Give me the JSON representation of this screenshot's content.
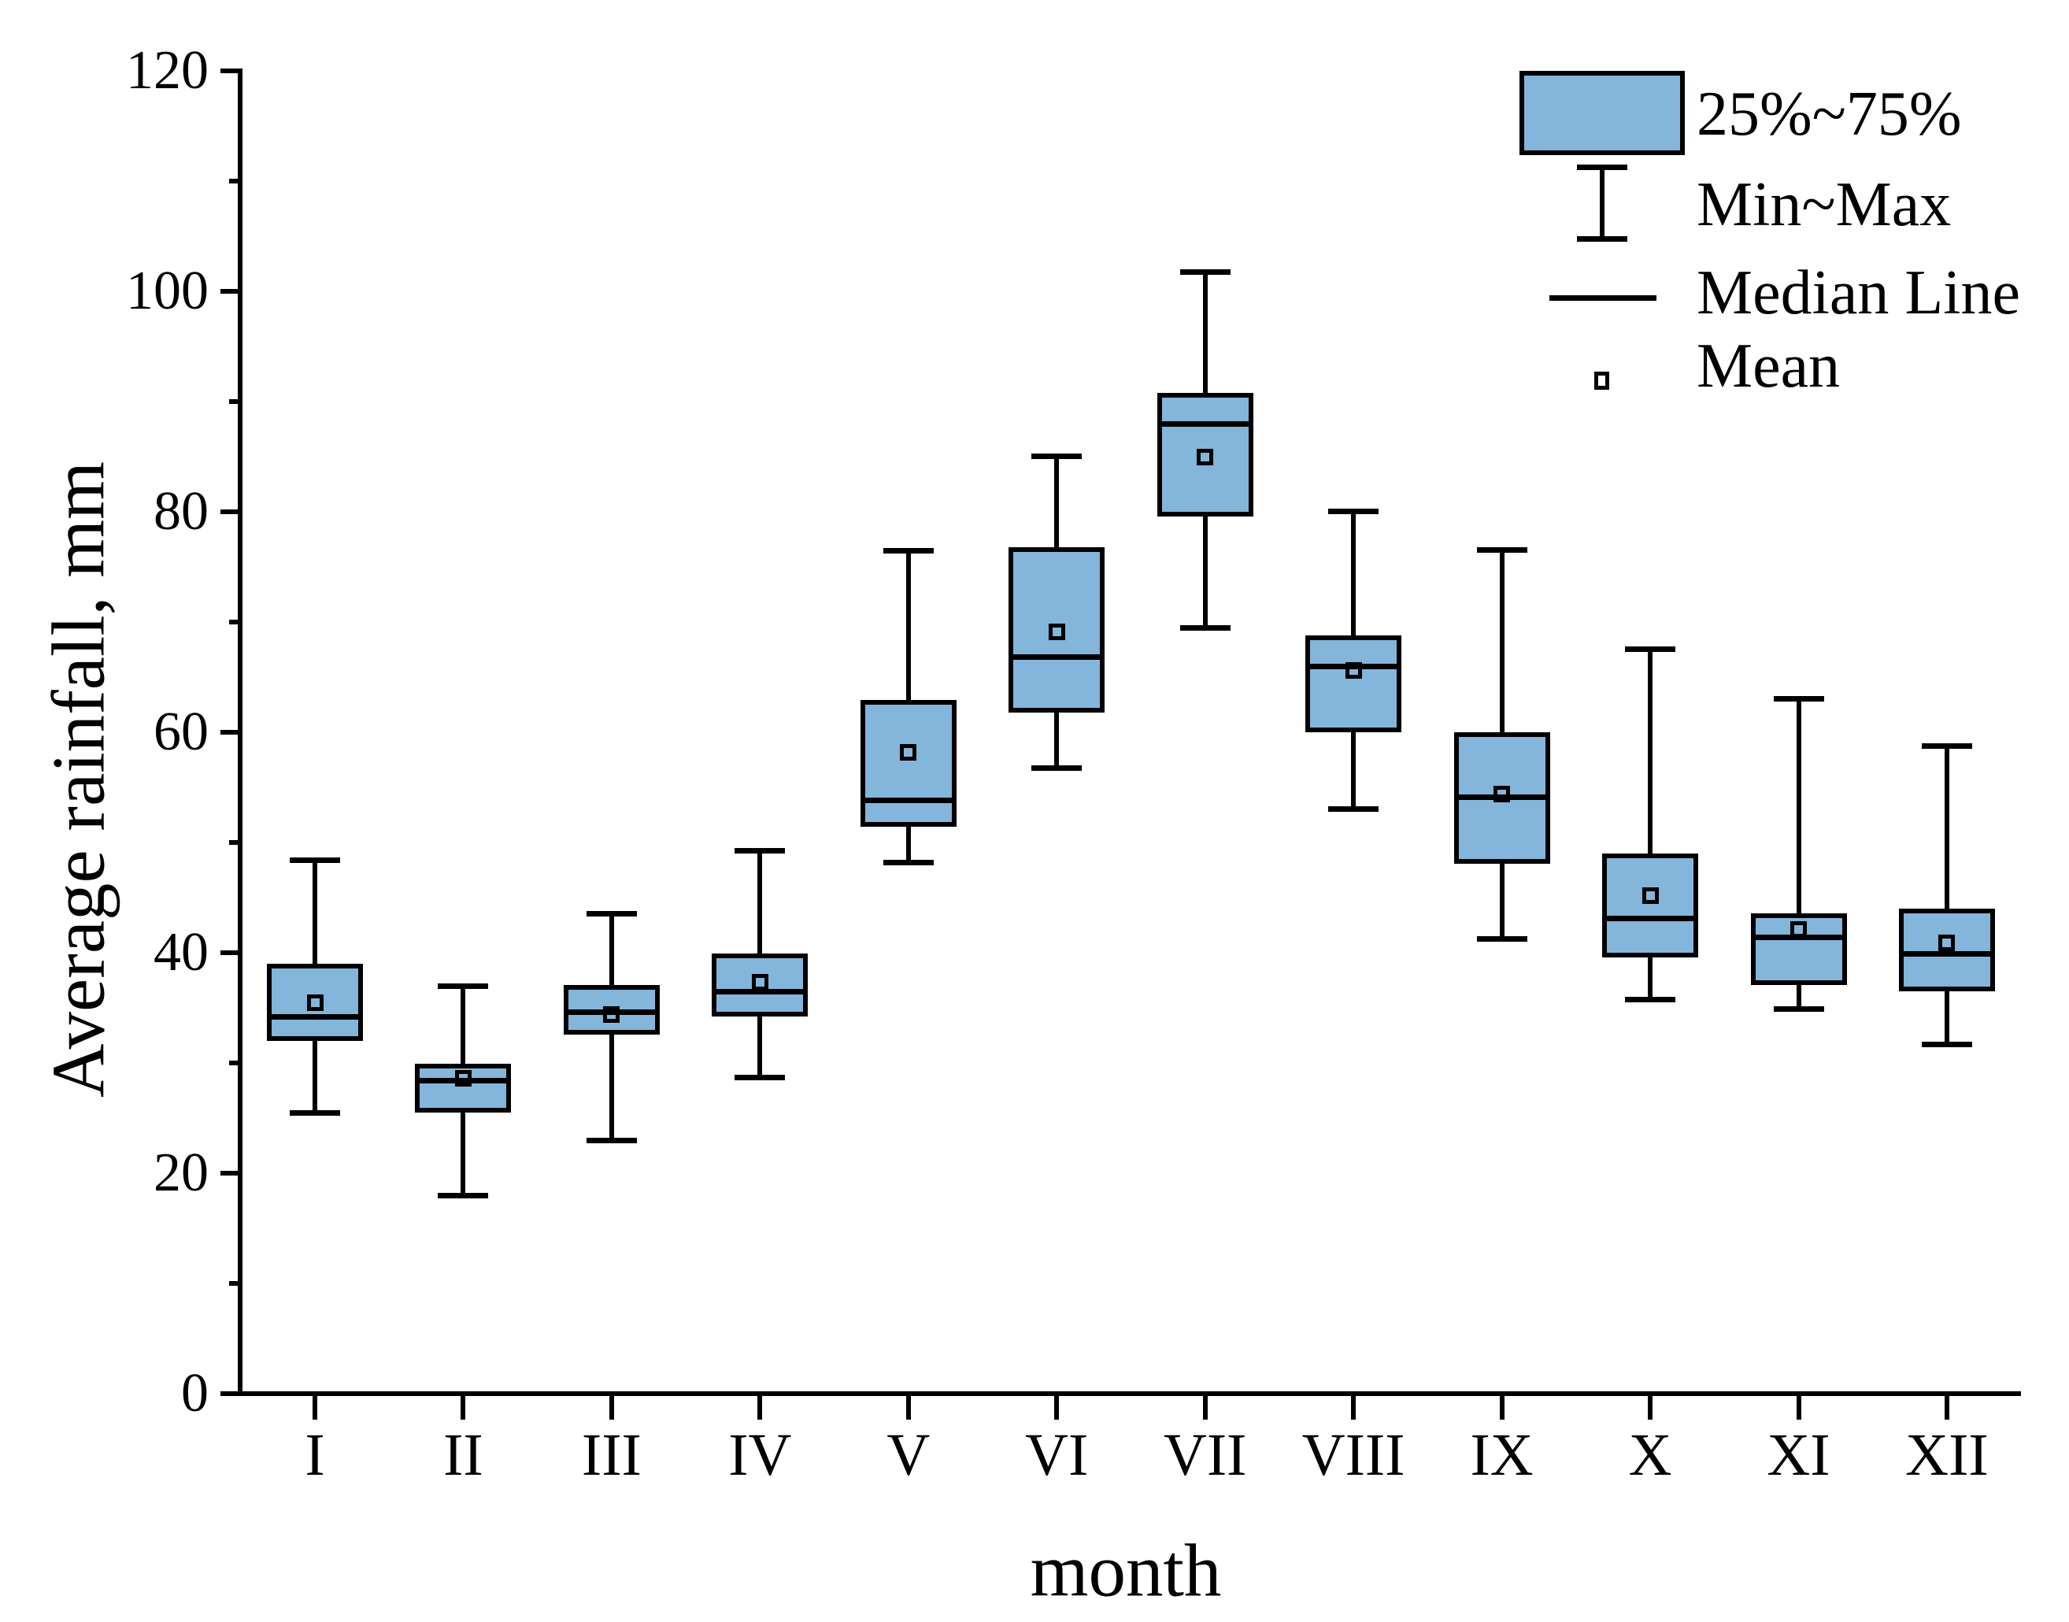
{
  "axes": {
    "y": {
      "label": "Average rainfall, mm",
      "major_values": [
        0,
        20,
        40,
        60,
        80,
        100,
        120
      ],
      "major_labels": [
        "0",
        "20",
        "40",
        "60",
        "80",
        "100",
        "120"
      ],
      "minor_values": [
        10,
        30,
        50,
        70,
        90,
        110
      ],
      "range": [
        0,
        120
      ]
    },
    "x": {
      "label": "month",
      "categories": [
        "I",
        "II",
        "III",
        "IV",
        "V",
        "VI",
        "VII",
        "VIII",
        "IX",
        "X",
        "XI",
        "XII"
      ]
    }
  },
  "legend": {
    "items": [
      {
        "glyph": "box-icon",
        "label": "25%~75%"
      },
      {
        "glyph": "whisker-icon",
        "label": "Min~Max"
      },
      {
        "glyph": "median-line-icon",
        "label": "Median Line"
      },
      {
        "glyph": "mean-marker-icon",
        "label": "Mean"
      }
    ]
  },
  "colors": {
    "box_fill": "#84B5DB",
    "line": "#000000",
    "background": "#FFFFFF"
  },
  "chart_data": {
    "type": "boxplot",
    "title": "",
    "xlabel": "month",
    "ylabel": "Average rainfall, mm",
    "ylim": [
      0,
      120
    ],
    "y_major_step": 20,
    "y_minor_step": 10,
    "grid": false,
    "legend_position": "top-right",
    "categories": [
      "I",
      "II",
      "III",
      "IV",
      "V",
      "VI",
      "VII",
      "VIII",
      "IX",
      "X",
      "XI",
      "XII"
    ],
    "boxes": [
      {
        "month": "I",
        "min": 25.5,
        "q1": 32.0,
        "median": 34.2,
        "mean": 35.5,
        "q3": 39.0,
        "max": 48.4
      },
      {
        "month": "II",
        "min": 18.0,
        "q1": 25.5,
        "median": 28.4,
        "mean": 28.6,
        "q3": 29.9,
        "max": 37.0
      },
      {
        "month": "III",
        "min": 23.0,
        "q1": 32.6,
        "median": 34.6,
        "mean": 34.4,
        "q3": 37.1,
        "max": 43.6
      },
      {
        "month": "IV",
        "min": 28.7,
        "q1": 34.2,
        "median": 36.5,
        "mean": 37.3,
        "q3": 39.9,
        "max": 49.3
      },
      {
        "month": "V",
        "min": 48.2,
        "q1": 51.4,
        "median": 53.8,
        "mean": 58.2,
        "q3": 62.9,
        "max": 76.5
      },
      {
        "month": "VI",
        "min": 56.8,
        "q1": 61.8,
        "median": 66.8,
        "mean": 69.1,
        "q3": 76.8,
        "max": 85.1
      },
      {
        "month": "VII",
        "min": 69.5,
        "q1": 79.6,
        "median": 88.0,
        "mean": 85.0,
        "q3": 90.8,
        "max": 101.8
      },
      {
        "month": "VIII",
        "min": 53.1,
        "q1": 60.0,
        "median": 66.0,
        "mean": 65.6,
        "q3": 68.8,
        "max": 80.1
      },
      {
        "month": "IX",
        "min": 41.3,
        "q1": 48.1,
        "median": 54.1,
        "mean": 54.4,
        "q3": 60.0,
        "max": 76.6
      },
      {
        "month": "X",
        "min": 35.8,
        "q1": 39.6,
        "median": 43.1,
        "mean": 45.2,
        "q3": 49.0,
        "max": 67.6
      },
      {
        "month": "XI",
        "min": 34.9,
        "q1": 37.1,
        "median": 41.4,
        "mean": 42.1,
        "q3": 43.6,
        "max": 63.1
      },
      {
        "month": "XII",
        "min": 31.7,
        "q1": 36.5,
        "median": 39.9,
        "mean": 40.9,
        "q3": 44.0,
        "max": 58.8
      }
    ]
  }
}
